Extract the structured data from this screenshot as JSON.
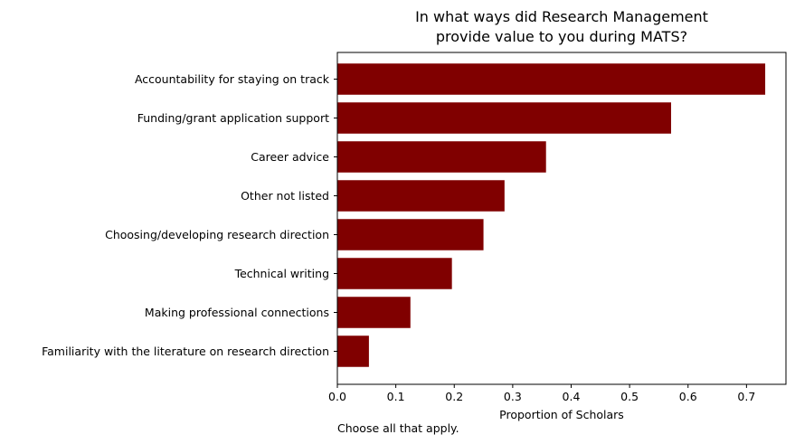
{
  "chart_data": {
    "type": "bar",
    "orientation": "horizontal",
    "title_lines": [
      "In what ways did Research Management",
      "provide value to you during MATS?"
    ],
    "xlabel": "Proportion of Scholars",
    "ylabel": "",
    "note": "Choose all that apply.",
    "categories": [
      "Accountability for staying on track",
      "Funding/grant application support",
      "Career advice",
      "Other not listed",
      "Choosing/developing research direction",
      "Technical writing",
      "Making professional connections",
      "Familiarity with the literature on research direction"
    ],
    "values": [
      0.732,
      0.571,
      0.357,
      0.286,
      0.25,
      0.196,
      0.125,
      0.054
    ],
    "xlim": [
      0,
      0.7675
    ],
    "xticks": [
      0.0,
      0.1,
      0.2,
      0.3,
      0.4,
      0.5,
      0.6,
      0.7
    ],
    "xtick_labels": [
      "0.0",
      "0.1",
      "0.2",
      "0.3",
      "0.4",
      "0.5",
      "0.6",
      "0.7"
    ],
    "bar_color": "#800000",
    "grid": false
  }
}
